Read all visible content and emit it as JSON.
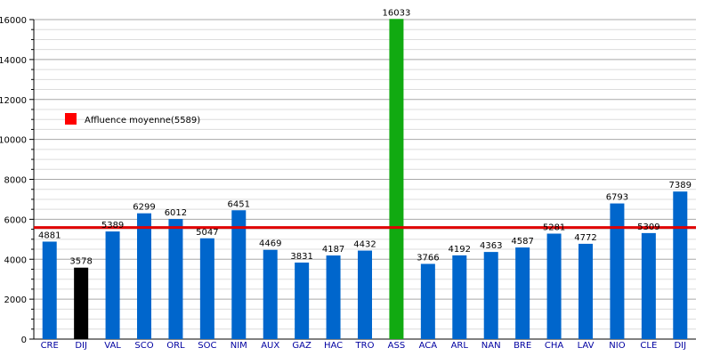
{
  "chart_data": {
    "type": "bar",
    "title": "",
    "xlabel": "",
    "ylabel": "",
    "ylim": [
      0,
      16000
    ],
    "yticks": [
      0,
      2000,
      4000,
      6000,
      8000,
      10000,
      12000,
      14000,
      16000
    ],
    "grid": true,
    "legend": {
      "placement": "top-left",
      "label": "Affluence moyenne(5589)",
      "color": "#ff0000"
    },
    "average_line": {
      "value": 5589,
      "color": "#e00000"
    },
    "colors": {
      "default": "#0066cc",
      "highlight_low": "#000000",
      "highlight_high": "#11aa11"
    },
    "categories": [
      "CRE",
      "DIJ",
      "VAL",
      "SCO",
      "ORL",
      "SOC",
      "NIM",
      "AUX",
      "GAZ",
      "HAC",
      "TRO",
      "ASS",
      "ACA",
      "ARL",
      "NAN",
      "BRE",
      "CHA",
      "LAV",
      "NIO",
      "CLE",
      "DIJ"
    ],
    "values": [
      4881,
      3578,
      5389,
      6299,
      6012,
      5047,
      6451,
      4469,
      3831,
      4187,
      4432,
      16033,
      3766,
      4192,
      4363,
      4587,
      5281,
      4772,
      6793,
      5309,
      7389
    ],
    "bar_colors": [
      "default",
      "highlight_low",
      "default",
      "default",
      "default",
      "default",
      "default",
      "default",
      "default",
      "default",
      "default",
      "highlight_high",
      "default",
      "default",
      "default",
      "default",
      "default",
      "default",
      "default",
      "default",
      "default"
    ]
  }
}
